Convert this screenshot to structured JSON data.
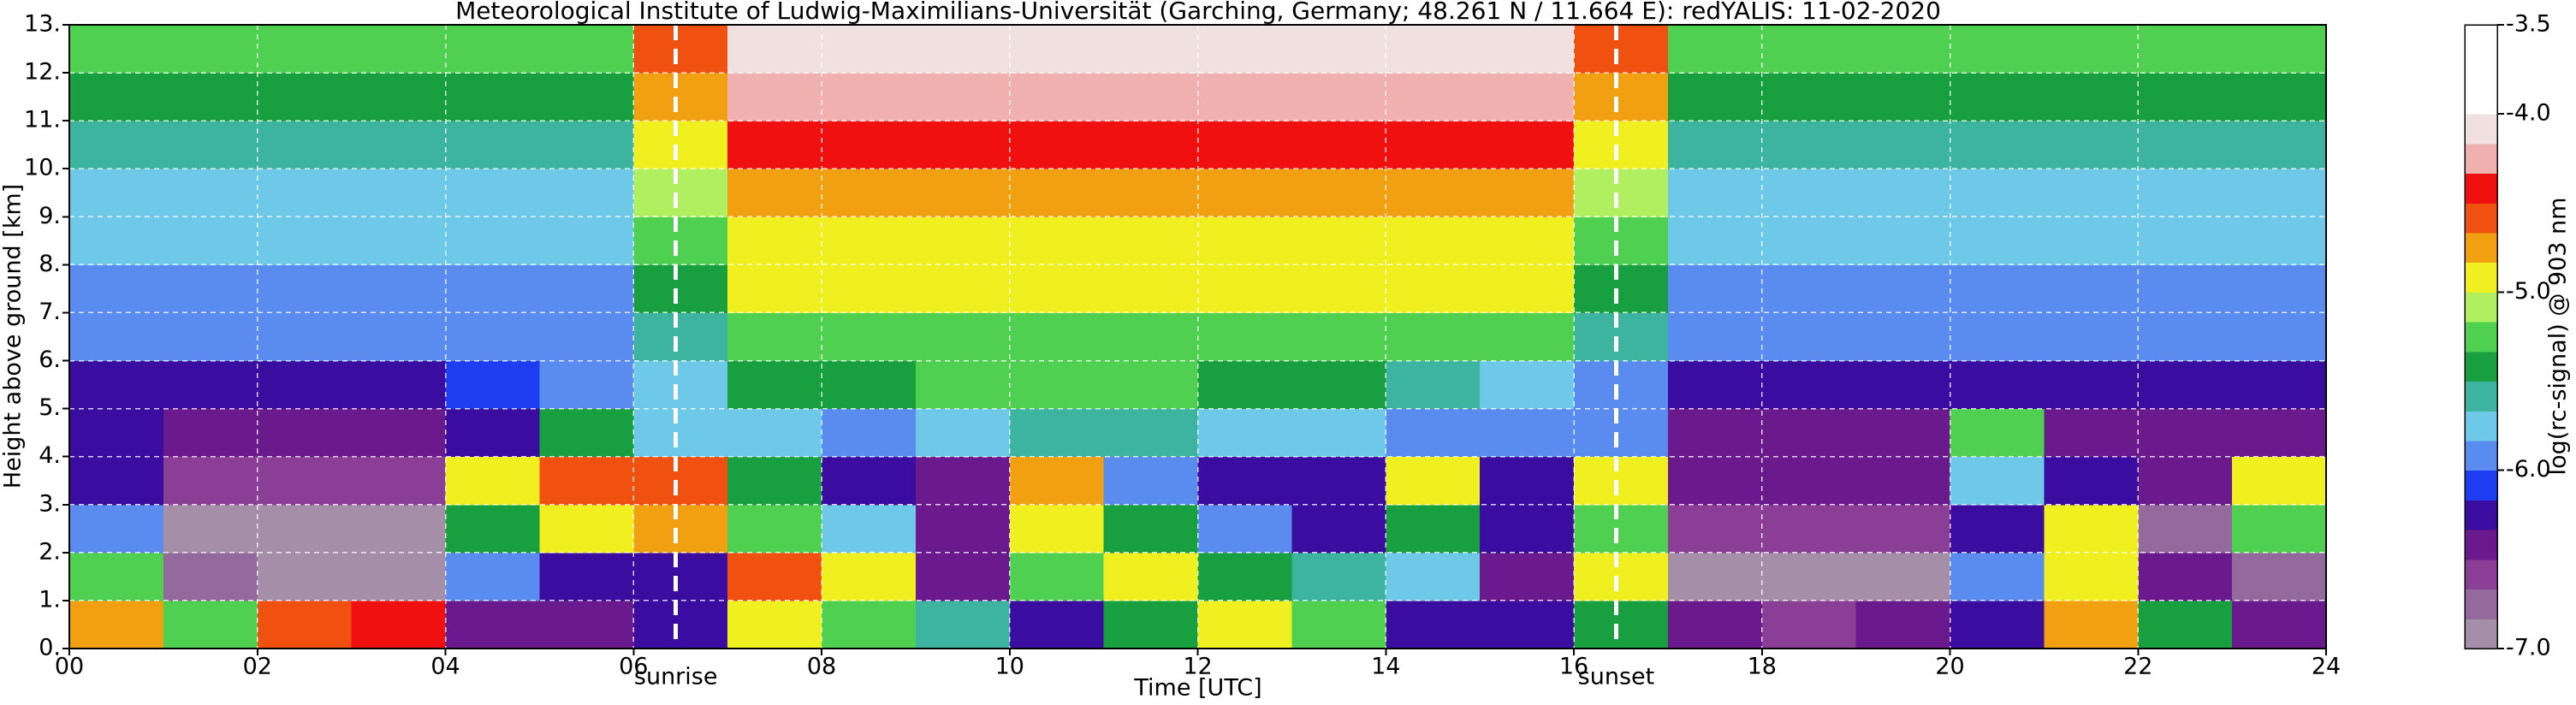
{
  "chart_data": {
    "type": "heatmap",
    "title": "Meteorological Institute of Ludwig-Maximilians-Universität (Garching, Germany; 48.261 N / 11.664 E):    redYALIS: 11-02-2020",
    "x_label": "Time [UTC]",
    "y_label": "Height above ground [km]",
    "colorbar_label": "log(rc-signal) @ 903 nm",
    "xbins": [
      0,
      1,
      2,
      3,
      4,
      5,
      6,
      7,
      8,
      9,
      10,
      11,
      12,
      13,
      14,
      15,
      16,
      17,
      18,
      19,
      20,
      21,
      22,
      23,
      24
    ],
    "ybins": [
      0,
      1,
      2,
      3,
      4,
      5,
      6,
      7,
      8,
      9,
      10,
      11,
      12,
      13
    ],
    "z": [
      [
        -4.8,
        -5.2,
        -4.6,
        -4.4,
        -6.5,
        -6.4,
        -6.3,
        -5.0,
        -5.3,
        -5.6,
        -6.3,
        -5.5,
        -4.9,
        -5.2,
        -6.2,
        -6.3,
        -5.5,
        -6.5,
        -6.6,
        -6.5,
        -6.3,
        -4.8,
        -5.5,
        -6.4
      ],
      [
        -5.2,
        -6.8,
        -6.9,
        -6.9,
        -6.0,
        -6.3,
        -6.2,
        -4.6,
        -5.0,
        -6.4,
        -5.2,
        -5.0,
        -5.5,
        -5.6,
        -5.8,
        -6.5,
        -5.0,
        -6.9,
        -6.9,
        -6.9,
        -6.0,
        -4.9,
        -6.5,
        -6.8
      ],
      [
        -6.0,
        -6.9,
        -6.9,
        -6.9,
        -5.5,
        -5.0,
        -4.8,
        -5.2,
        -5.8,
        -6.5,
        -5.0,
        -5.5,
        -6.0,
        -6.2,
        -5.5,
        -6.2,
        -5.2,
        -6.6,
        -6.6,
        -6.6,
        -6.2,
        -5.0,
        -6.8,
        -5.2
      ],
      [
        -6.3,
        -6.6,
        -6.6,
        -6.6,
        -5.0,
        -4.6,
        -4.6,
        -5.5,
        -6.3,
        -6.4,
        -4.8,
        -6.0,
        -6.3,
        -6.3,
        -5.0,
        -6.2,
        -5.0,
        -6.5,
        -6.5,
        -6.5,
        -5.8,
        -6.2,
        -6.5,
        -5.0
      ],
      [
        -6.3,
        -6.4,
        -6.4,
        -6.4,
        -6.2,
        -5.5,
        -5.8,
        -5.8,
        -5.9,
        -5.8,
        -5.6,
        -5.6,
        -5.7,
        -5.8,
        -5.9,
        -6.0,
        -6.0,
        -6.4,
        -6.4,
        -6.4,
        -5.2,
        -6.4,
        -6.4,
        -6.4
      ],
      [
        -6.2,
        -6.2,
        -6.2,
        -6.2,
        -6.1,
        -6.0,
        -5.8,
        -5.5,
        -5.4,
        -5.3,
        -5.3,
        -5.3,
        -5.4,
        -5.5,
        -5.6,
        -5.8,
        -5.9,
        -6.2,
        -6.2,
        -6.2,
        -6.2,
        -6.2,
        -6.2,
        -6.2
      ],
      [
        -6.0,
        -6.0,
        -6.0,
        -6.0,
        -6.0,
        -6.0,
        -5.6,
        -5.2,
        -5.2,
        -5.2,
        -5.2,
        -5.2,
        -5.2,
        -5.2,
        -5.2,
        -5.2,
        -5.6,
        -6.0,
        -6.0,
        -6.0,
        -6.0,
        -6.0,
        -6.0,
        -6.0
      ],
      [
        -5.9,
        -5.9,
        -5.9,
        -5.9,
        -5.9,
        -5.9,
        -5.4,
        -5.0,
        -5.0,
        -5.0,
        -5.0,
        -5.0,
        -5.0,
        -5.0,
        -5.0,
        -5.0,
        -5.4,
        -5.9,
        -5.9,
        -5.9,
        -5.9,
        -5.9,
        -5.9,
        -5.9
      ],
      [
        -5.8,
        -5.8,
        -5.8,
        -5.8,
        -5.8,
        -5.8,
        -5.3,
        -4.9,
        -4.9,
        -4.9,
        -4.9,
        -4.9,
        -4.9,
        -4.9,
        -4.9,
        -4.9,
        -5.3,
        -5.8,
        -5.8,
        -5.8,
        -5.8,
        -5.8,
        -5.8,
        -5.8
      ],
      [
        -5.7,
        -5.7,
        -5.7,
        -5.7,
        -5.7,
        -5.7,
        -5.1,
        -4.7,
        -4.7,
        -4.7,
        -4.7,
        -4.7,
        -4.7,
        -4.7,
        -4.7,
        -4.7,
        -5.1,
        -5.7,
        -5.7,
        -5.7,
        -5.7,
        -5.7,
        -5.7,
        -5.7
      ],
      [
        -5.6,
        -5.6,
        -5.6,
        -5.6,
        -5.6,
        -5.6,
        -5.0,
        -4.5,
        -4.5,
        -4.5,
        -4.5,
        -4.5,
        -4.5,
        -4.5,
        -4.5,
        -4.5,
        -5.0,
        -5.6,
        -5.6,
        -5.6,
        -5.6,
        -5.6,
        -5.6,
        -5.6
      ],
      [
        -5.4,
        -5.4,
        -5.4,
        -5.4,
        -5.4,
        -5.4,
        -4.8,
        -4.3,
        -4.3,
        -4.3,
        -4.3,
        -4.3,
        -4.3,
        -4.3,
        -4.3,
        -4.3,
        -4.8,
        -5.4,
        -5.4,
        -5.4,
        -5.4,
        -5.4,
        -5.4,
        -5.4
      ],
      [
        -5.3,
        -5.3,
        -5.3,
        -5.3,
        -5.3,
        -5.3,
        -4.6,
        -4.1,
        -4.1,
        -4.1,
        -4.1,
        -4.1,
        -4.1,
        -4.1,
        -4.1,
        -4.1,
        -4.6,
        -5.3,
        -5.3,
        -5.3,
        -5.3,
        -5.3,
        -5.3,
        -5.3
      ]
    ],
    "xlim": [
      0,
      24
    ],
    "ylim": [
      0,
      13
    ],
    "xticks": [
      {
        "value": 0,
        "label": "00"
      },
      {
        "value": 2,
        "label": "02"
      },
      {
        "value": 4,
        "label": "04"
      },
      {
        "value": 6,
        "label": "06"
      },
      {
        "value": 8,
        "label": "08"
      },
      10,
      12,
      14,
      16,
      18,
      20,
      22,
      24
    ],
    "yticks": [
      {
        "value": 0,
        "label": "0."
      },
      {
        "value": 1,
        "label": "1."
      },
      {
        "value": 2,
        "label": "2."
      },
      {
        "value": 3,
        "label": "3."
      },
      {
        "value": 4,
        "label": "4."
      },
      {
        "value": 5,
        "label": "5."
      },
      {
        "value": 6,
        "label": "6."
      },
      {
        "value": 7,
        "label": "7."
      },
      {
        "value": 8,
        "label": "8."
      },
      {
        "value": 9,
        "label": "9."
      },
      {
        "value": 10,
        "label": "10."
      },
      {
        "value": 11,
        "label": "11."
      },
      {
        "value": 12,
        "label": "12."
      },
      {
        "value": 13,
        "label": "13."
      }
    ],
    "clim": [
      -7.0,
      -3.5
    ],
    "cticks": [
      {
        "value": -7.0,
        "label": "-7.0"
      },
      {
        "value": -6.0,
        "label": "-6.0"
      },
      {
        "value": -5.0,
        "label": "-5.0"
      },
      {
        "value": -4.0,
        "label": "-4.0"
      },
      {
        "value": -3.5,
        "label": "-3.5"
      }
    ],
    "colormap": [
      "#a58fa8",
      "#946a9e",
      "#8a3e96",
      "#6a1a8c",
      "#3a0ca0",
      "#1e3cf0",
      "#5a8cf0",
      "#6ec8e8",
      "#3cb4a0",
      "#18a040",
      "#50d050",
      "#b0f060",
      "#f0f020",
      "#f0a010",
      "#f05010",
      "#f01010",
      "#f0b0b0",
      "#f0e0e0",
      "#ffffff",
      "#ffffff",
      "#ffffff"
    ],
    "grid": true,
    "annotations": [
      {
        "text": "sunrise",
        "x": 6.45
      },
      {
        "text": "sunset",
        "x": 16.45
      }
    ]
  }
}
